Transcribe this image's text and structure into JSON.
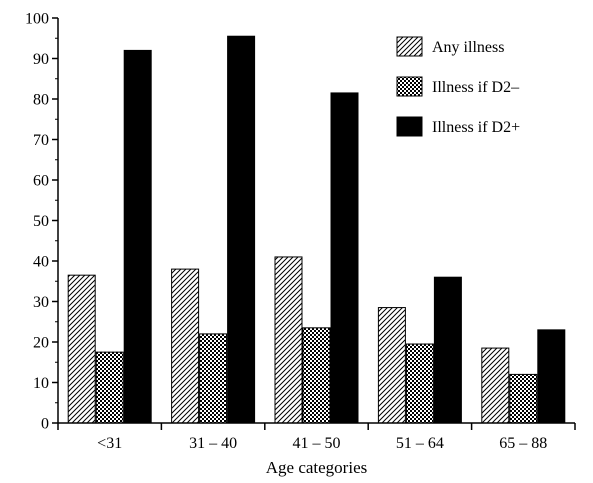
{
  "chart_data": {
    "type": "bar",
    "title": "",
    "xlabel": "Age categories",
    "ylabel": "",
    "ylim": [
      0,
      100
    ],
    "yticks": [
      0,
      10,
      20,
      30,
      40,
      50,
      60,
      70,
      80,
      90,
      100
    ],
    "categories": [
      "<31",
      "31 – 40",
      "41 – 50",
      "51 – 64",
      "65 – 88"
    ],
    "grid": false,
    "legend": "top-right",
    "series": [
      {
        "name": "Any illness",
        "pattern": "diagonal-hatch",
        "color": "#000000",
        "values": [
          36.5,
          38,
          41,
          28.5,
          18.5
        ]
      },
      {
        "name": "Illness if D2–",
        "pattern": "crosshatch",
        "color": "#000000",
        "values": [
          17.5,
          22,
          23.5,
          19.5,
          12
        ]
      },
      {
        "name": "Illness if D2+",
        "pattern": "solid",
        "color": "#000000",
        "values": [
          92,
          95.5,
          81.5,
          36,
          23
        ]
      }
    ]
  }
}
